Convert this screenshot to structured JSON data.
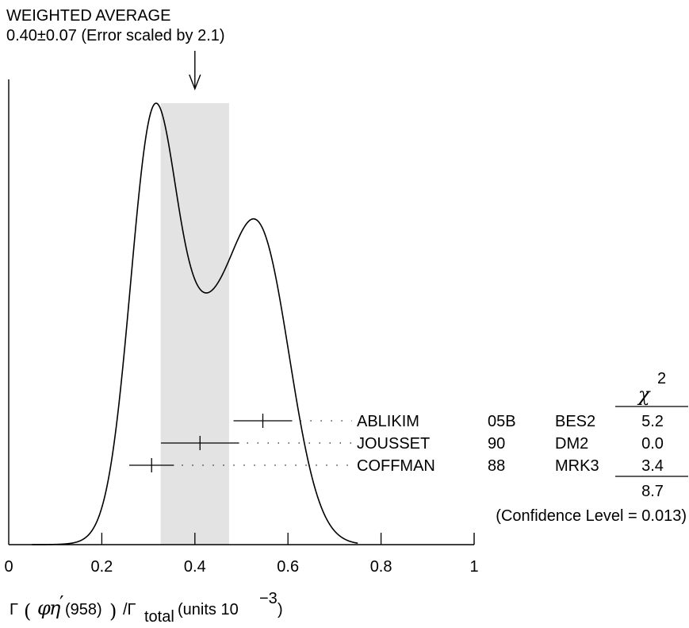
{
  "chart_data": {
    "type": "ideogram",
    "title_lines": [
      "WEIGHTED AVERAGE",
      "0.40±0.07 (Error scaled by 2.1)"
    ],
    "xlabel": {
      "gamma": "Γ",
      "open": "(",
      "phi": "φ",
      "eta": "η",
      "prime": "′",
      "mass": "(958)",
      "close": ")",
      "slash": "/Γ",
      "total": "total",
      "units": "(units 10",
      "exp": "−3",
      "units_close": ")"
    },
    "xlim": [
      0,
      1
    ],
    "xticks": [
      0,
      0.2,
      0.4,
      0.6,
      0.8,
      1
    ],
    "xtick_labels": [
      "0",
      "0.2",
      "0.4",
      "0.6",
      "0.8",
      "1"
    ],
    "average": {
      "value": 0.4,
      "error": 0.0735
    },
    "curve_peak_normalized": 1.0,
    "measurements": [
      {
        "author": "ABLIKIM",
        "year": "05B",
        "experiment": "BES2",
        "value": 0.546,
        "error": 0.063,
        "chi2": "5.2"
      },
      {
        "author": "JOUSSET",
        "year": "90",
        "experiment": "DM2",
        "value": 0.411,
        "error": 0.084,
        "chi2": "0.0"
      },
      {
        "author": "COFFMAN",
        "year": "88",
        "experiment": "MRK3",
        "value": 0.307,
        "error": 0.048,
        "chi2": "3.4"
      }
    ],
    "chi2_header": "χ",
    "chi2_header_exp": "2",
    "chi2_total": "8.7",
    "confidence_level": "(Confidence Level = 0.013)"
  }
}
